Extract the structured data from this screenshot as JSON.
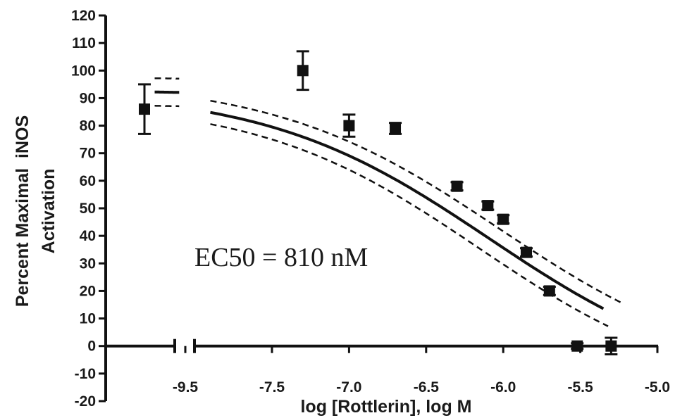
{
  "chart_data": {
    "type": "scatter",
    "title": "",
    "xlabel": "log [Rottlerin], log M",
    "ylabel": [
      "Percent Maximal  iNOS",
      "Activation"
    ],
    "ylim": [
      -20,
      120
    ],
    "yticks": [
      -20,
      -10,
      0,
      10,
      20,
      30,
      40,
      50,
      60,
      70,
      80,
      90,
      100,
      110,
      120
    ],
    "xlim": [
      -9.7,
      -5.0
    ],
    "xticks": [
      -9.5,
      -7.5,
      -7.0,
      -6.5,
      -6.0,
      -5.5,
      -5.0
    ],
    "xtick_labels": [
      "-9.5",
      "-7.5",
      "-7.0",
      "-6.5",
      "-6.0",
      "-5.5",
      "-5.0"
    ],
    "x_axis_break_between": [
      -9.5,
      -7.9
    ],
    "annotation": "EC50 = 810 nM",
    "grid": false,
    "series": [
      {
        "kind": "points",
        "x": [
          -9.7,
          -7.3,
          -7.0,
          -6.7,
          -6.3,
          -6.1,
          -6.0,
          -5.85,
          -5.7,
          -5.52,
          -5.3
        ],
        "y": [
          86,
          100,
          80,
          79,
          58,
          51,
          46,
          34,
          20,
          0,
          0
        ],
        "err": [
          9,
          7,
          4,
          2,
          1.5,
          1.5,
          1.5,
          1.5,
          1.5,
          1,
          3
        ]
      },
      {
        "kind": "fit",
        "fit_model": "four-parameter logistic",
        "top": 93,
        "bottom": -15,
        "log_ec50": -6.09,
        "hill": -0.6,
        "x_range": [
          -9.7,
          -5.35
        ]
      }
    ]
  }
}
